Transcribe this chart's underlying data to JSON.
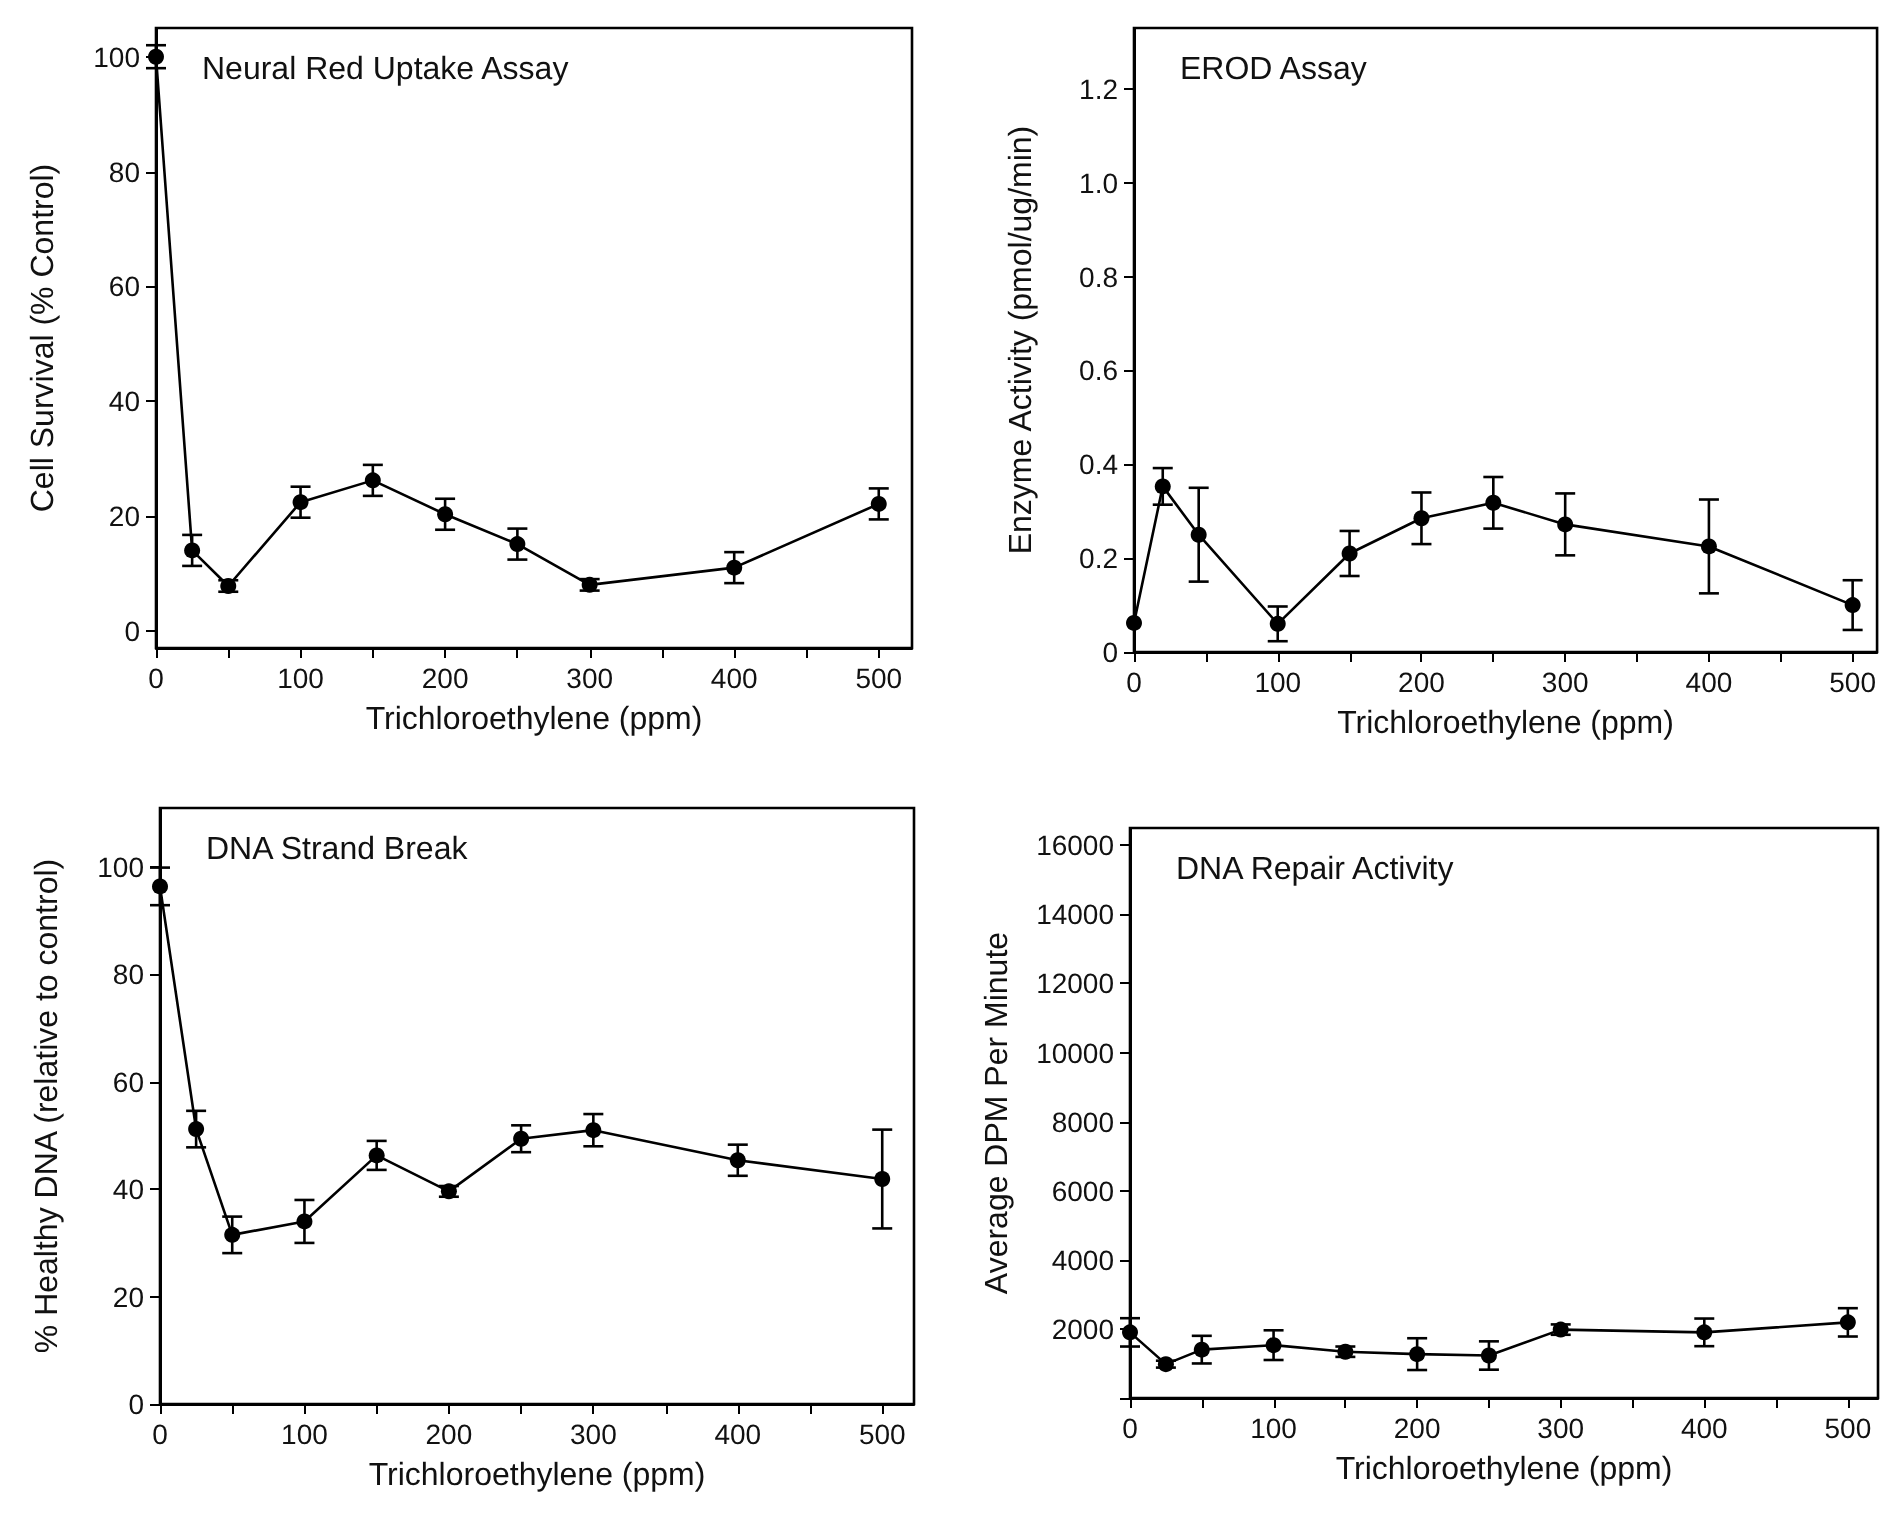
{
  "chart_data": [
    {
      "type": "line",
      "title": "Neural Red Uptake Assay",
      "xlabel": "Trichloroethylene (ppm)",
      "ylabel": "Cell Survival (% Control)",
      "x": [
        0,
        25,
        50,
        100,
        150,
        200,
        250,
        300,
        400,
        500
      ],
      "xlim": [
        0,
        523
      ],
      "xticks": [
        0,
        {
          "value": 50,
          "label": null
        },
        100,
        {
          "value": 150,
          "label": null
        },
        200,
        {
          "value": 250,
          "label": null
        },
        300,
        {
          "value": 350,
          "label": null
        },
        400,
        {
          "value": 450,
          "label": null
        },
        500
      ],
      "ylim": [
        -3,
        105
      ],
      "yticks": [
        0,
        20,
        40,
        60,
        80,
        100
      ],
      "grid": false,
      "marker": "circle",
      "line_style": "solid",
      "series": [
        {
          "color": "#000000",
          "values": [
            100,
            14,
            7.8,
            22.4,
            26.2,
            20.3,
            15.1,
            8,
            11,
            22.1
          ],
          "errors": [
            2,
            2.7,
            1,
            2.7,
            2.7,
            2.7,
            2.7,
            1,
            2.7,
            2.7
          ]
        }
      ]
    },
    {
      "type": "line",
      "title": "EROD Assay",
      "xlabel": "Trichloroethylene (ppm)",
      "ylabel": "Enzyme Activity (pmol/ug/min)",
      "x": [
        0,
        20,
        45,
        100,
        150,
        200,
        250,
        300,
        400,
        500
      ],
      "xlim": [
        0,
        517
      ],
      "xticks": [
        0,
        {
          "value": 50,
          "label": null
        },
        100,
        {
          "value": 150,
          "label": null
        },
        200,
        {
          "value": 250,
          "label": null
        },
        300,
        {
          "value": 350,
          "label": null
        },
        400,
        {
          "value": 450,
          "label": null
        },
        500
      ],
      "ylim": [
        0,
        1.33
      ],
      "yticks": [
        0,
        0.2,
        0.4,
        0.6,
        0.8,
        {
          "value": 1,
          "label": "1.0"
        },
        1.2
      ],
      "grid": false,
      "marker": "circle",
      "line_style": "solid",
      "series": [
        {
          "color": "#000000",
          "values": [
            0.062,
            0.353,
            0.25,
            0.06,
            0.21,
            0.285,
            0.318,
            0.272,
            0.225,
            0.1
          ],
          "errors": [
            null,
            0.039,
            0.1,
            0.037,
            0.048,
            0.055,
            0.055,
            0.066,
            0.1,
            0.053
          ]
        }
      ]
    },
    {
      "type": "line",
      "title": "DNA Strand Break",
      "xlabel": "Trichloroethylene (ppm)",
      "ylabel": "% Healthy DNA (relative to control)",
      "x": [
        0,
        25,
        50,
        100,
        150,
        200,
        250,
        300,
        400,
        500
      ],
      "xlim": [
        0,
        522
      ],
      "xticks": [
        0,
        {
          "value": 50,
          "label": null
        },
        100,
        {
          "value": 150,
          "label": null
        },
        200,
        {
          "value": 250,
          "label": null
        },
        300,
        {
          "value": 350,
          "label": null
        },
        400,
        {
          "value": 450,
          "label": null
        },
        500
      ],
      "ylim": [
        0,
        111
      ],
      "yticks": [
        0,
        20,
        40,
        60,
        80,
        100
      ],
      "grid": false,
      "marker": "circle",
      "line_style": "solid",
      "series": [
        {
          "color": "#000000",
          "values": [
            96.4,
            51.2,
            31.5,
            34,
            46.3,
            39.6,
            49.4,
            51,
            45.4,
            41.9
          ],
          "errors": [
            3.5,
            3.4,
            3.4,
            4,
            2.7,
            1,
            2.5,
            3,
            2.9,
            9.2
          ]
        }
      ]
    },
    {
      "type": "line",
      "title": "DNA Repair Activity",
      "xlabel": "Trichloroethylene (ppm)",
      "ylabel": "Average DPM Per Minute",
      "x": [
        0,
        25,
        50,
        100,
        150,
        200,
        250,
        300,
        400,
        500
      ],
      "xlim": [
        0,
        521
      ],
      "xticks": [
        0,
        {
          "value": 50,
          "label": null
        },
        100,
        {
          "value": 150,
          "label": null
        },
        200,
        {
          "value": 250,
          "label": null
        },
        300,
        {
          "value": 350,
          "label": null
        },
        400,
        {
          "value": 450,
          "label": null
        },
        500
      ],
      "ylim": [
        0,
        16500
      ],
      "yticks": [
        {
          "value": 0,
          "label": null
        },
        2000,
        4000,
        6000,
        8000,
        10000,
        12000,
        14000,
        16000
      ],
      "grid": false,
      "marker": "circle",
      "line_style": "solid",
      "series": [
        {
          "color": "#000000",
          "values": [
            1900,
            980,
            1400,
            1530,
            1340,
            1270,
            1230,
            1980,
            1900,
            2190
          ],
          "errors": [
            410,
            100,
            400,
            430,
            150,
            460,
            410,
            150,
            400,
            410
          ]
        }
      ]
    }
  ]
}
